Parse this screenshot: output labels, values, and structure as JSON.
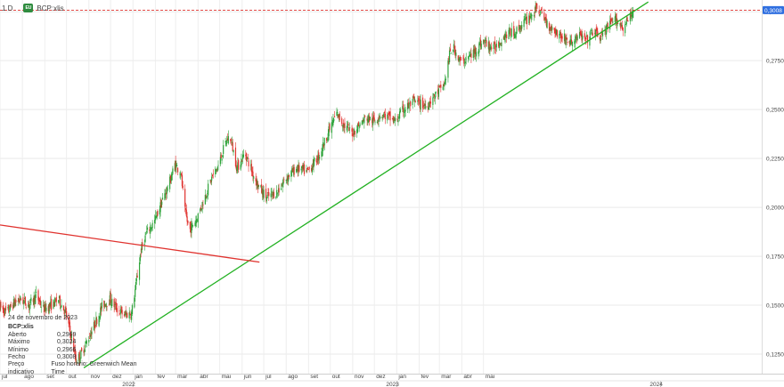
{
  "header": {
    "interval": "1 D",
    "badge": "EU",
    "symbol": "BCP:xlis"
  },
  "info_box": {
    "date": "24 de novembro de 2023",
    "symbol": "BCP:xlis",
    "rows": [
      {
        "label": "Aberto",
        "value": "0,2969"
      },
      {
        "label": "Máximo",
        "value": "0,3024"
      },
      {
        "label": "Mínimo",
        "value": "0,2966"
      },
      {
        "label": "Fecho",
        "value": "0,3008"
      }
    ],
    "footer": [
      "Preço indicativo",
      "Fuso horário: Greenwich Mean Time"
    ]
  },
  "colors": {
    "up": "#2ea33a",
    "down": "#e0332f",
    "support_line": "#22b122",
    "resistance_line": "#e0332f",
    "last_price_line": "#e0332f",
    "last_price_tag": "#2f6fe0"
  },
  "chart_data": {
    "type": "candlestick",
    "title": "",
    "price_axis": {
      "ticks": [
        "0,3000",
        "0,2750",
        "0,2500",
        "0,2250",
        "0,2000",
        "0,1750",
        "0,1500",
        "0,1250"
      ],
      "tick_values": [
        0.3,
        0.275,
        0.25,
        0.225,
        0.2,
        0.175,
        0.15,
        0.125
      ],
      "ylim": [
        0.115,
        0.306
      ],
      "last_price": "0,3008"
    },
    "time_axis": {
      "months": [
        "jul",
        "ago",
        "set",
        "out",
        "nov",
        "dez",
        "jan",
        "fev",
        "mar",
        "abr",
        "mai",
        "jun",
        "jul",
        "ago",
        "set",
        "out",
        "nov",
        "dez",
        "jan",
        "fev",
        "mar",
        "abr",
        "mai"
      ],
      "years": [
        "2022",
        "2023",
        "2024"
      ],
      "xlim": [
        "2021-07-01",
        "2024-05-20"
      ]
    },
    "series_path": [
      [
        "2021-07-01",
        0.149
      ],
      [
        "2021-07-10",
        0.146
      ],
      [
        "2021-07-20",
        0.151
      ],
      [
        "2021-07-30",
        0.153
      ],
      [
        "2021-08-10",
        0.15
      ],
      [
        "2021-08-20",
        0.155
      ],
      [
        "2021-08-30",
        0.148
      ],
      [
        "2021-09-10",
        0.15
      ],
      [
        "2021-09-20",
        0.153
      ],
      [
        "2021-09-30",
        0.146
      ],
      [
        "2021-10-08",
        0.133
      ],
      [
        "2021-10-14",
        0.122
      ],
      [
        "2021-10-20",
        0.124
      ],
      [
        "2021-10-30",
        0.132
      ],
      [
        "2021-11-10",
        0.141
      ],
      [
        "2021-11-20",
        0.15
      ],
      [
        "2021-11-30",
        0.153
      ],
      [
        "2021-12-10",
        0.148
      ],
      [
        "2021-12-20",
        0.145
      ],
      [
        "2021-12-30",
        0.146
      ],
      [
        "2022-01-05",
        0.16
      ],
      [
        "2022-01-12",
        0.178
      ],
      [
        "2022-01-20",
        0.187
      ],
      [
        "2022-01-31",
        0.193
      ],
      [
        "2022-02-10",
        0.203
      ],
      [
        "2022-02-20",
        0.212
      ],
      [
        "2022-02-28",
        0.222
      ],
      [
        "2022-03-08",
        0.218
      ],
      [
        "2022-03-14",
        0.198
      ],
      [
        "2022-03-20",
        0.188
      ],
      [
        "2022-03-31",
        0.195
      ],
      [
        "2022-04-10",
        0.205
      ],
      [
        "2022-04-20",
        0.215
      ],
      [
        "2022-04-30",
        0.222
      ],
      [
        "2022-05-08",
        0.232
      ],
      [
        "2022-05-15",
        0.237
      ],
      [
        "2022-05-25",
        0.22
      ],
      [
        "2022-06-05",
        0.228
      ],
      [
        "2022-06-15",
        0.218
      ],
      [
        "2022-06-25",
        0.21
      ],
      [
        "2022-07-05",
        0.205
      ],
      [
        "2022-07-20",
        0.208
      ],
      [
        "2022-08-01",
        0.215
      ],
      [
        "2022-08-15",
        0.22
      ],
      [
        "2022-08-30",
        0.218
      ],
      [
        "2022-09-15",
        0.226
      ],
      [
        "2022-09-30",
        0.24
      ],
      [
        "2022-10-10",
        0.248
      ],
      [
        "2022-10-20",
        0.242
      ],
      [
        "2022-10-31",
        0.238
      ],
      [
        "2022-11-10",
        0.242
      ],
      [
        "2022-11-20",
        0.246
      ],
      [
        "2022-11-30",
        0.244
      ],
      [
        "2022-12-10",
        0.248
      ],
      [
        "2022-12-20",
        0.246
      ],
      [
        "2022-12-30",
        0.244
      ],
      [
        "2023-01-10",
        0.25
      ],
      [
        "2023-01-25",
        0.254
      ],
      [
        "2023-02-10",
        0.252
      ],
      [
        "2023-02-25",
        0.258
      ],
      [
        "2023-03-08",
        0.263
      ],
      [
        "2023-03-15",
        0.278
      ],
      [
        "2023-03-20",
        0.282
      ],
      [
        "2023-03-31",
        0.274
      ],
      [
        "2023-04-15",
        0.278
      ],
      [
        "2023-04-30",
        0.285
      ],
      [
        "2023-05-15",
        0.281
      ],
      [
        "2023-05-30",
        0.288
      ],
      [
        "2023-06-15",
        0.29
      ],
      [
        "2023-06-30",
        0.296
      ],
      [
        "2023-07-15",
        0.302
      ],
      [
        "2023-07-30",
        0.293
      ],
      [
        "2023-08-15",
        0.288
      ],
      [
        "2023-08-30",
        0.284
      ],
      [
        "2023-09-10",
        0.288
      ],
      [
        "2023-09-20",
        0.285
      ],
      [
        "2023-09-30",
        0.29
      ],
      [
        "2023-10-10",
        0.287
      ],
      [
        "2023-10-20",
        0.292
      ],
      [
        "2023-10-31",
        0.296
      ],
      [
        "2023-11-10",
        0.292
      ],
      [
        "2023-11-20",
        0.297
      ],
      [
        "2023-11-24",
        0.3008
      ]
    ],
    "ohlc_last": {
      "date": "2023-11-24",
      "open": 0.2969,
      "high": 0.3024,
      "low": 0.2966,
      "close": 0.3008
    },
    "trendlines": [
      {
        "kind": "support",
        "from": [
          "2021-10-25",
          0.118
        ],
        "to": [
          "2023-12-15",
          0.305
        ]
      },
      {
        "kind": "resistance",
        "from": [
          "2021-07-01",
          0.191
        ],
        "to": [
          "2022-06-25",
          0.172
        ]
      }
    ]
  }
}
